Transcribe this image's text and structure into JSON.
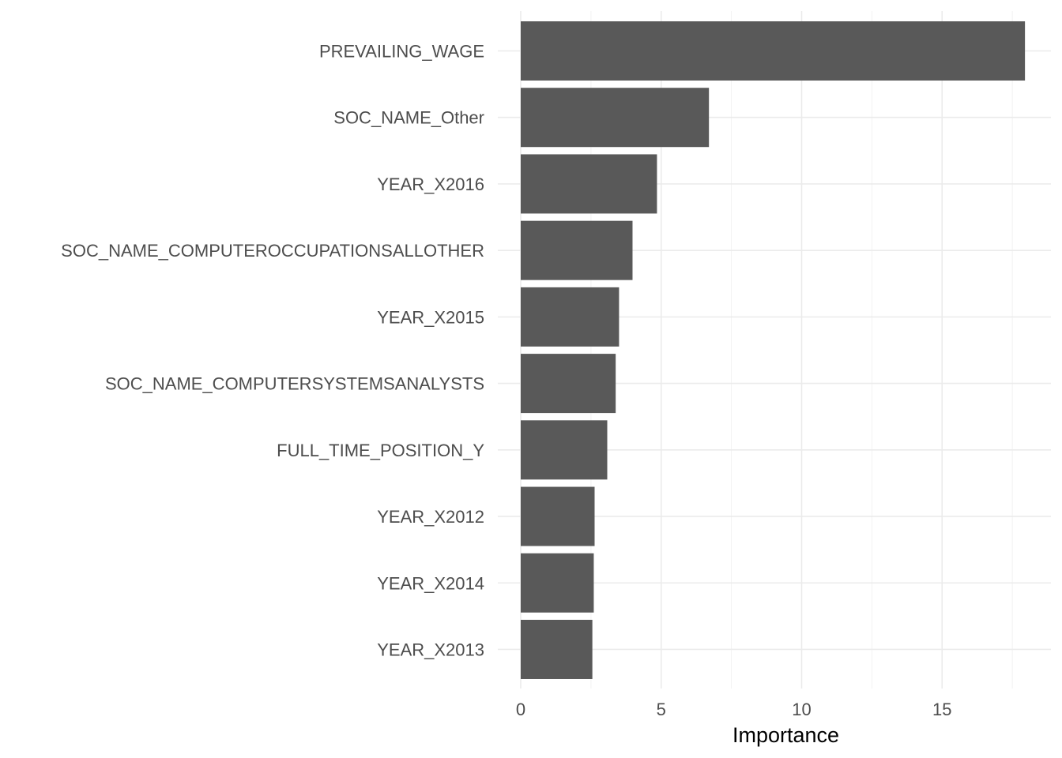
{
  "chart_data": {
    "type": "bar",
    "orientation": "horizontal",
    "categories": [
      "PREVAILING_WAGE",
      "SOC_NAME_Other",
      "YEAR_X2016",
      "SOC_NAME_COMPUTEROCCUPATIONSALLOTHER",
      "YEAR_X2015",
      "SOC_NAME_COMPUTERSYSTEMSANALYSTS",
      "FULL_TIME_POSITION_Y",
      "YEAR_X2012",
      "YEAR_X2014",
      "YEAR_X2013"
    ],
    "values": [
      17.95,
      6.7,
      4.85,
      3.98,
      3.5,
      3.38,
      3.08,
      2.63,
      2.6,
      2.55
    ],
    "xlabel": "Importance",
    "ylabel": "",
    "xlim": [
      0,
      18.9
    ],
    "xticks": [
      0,
      5,
      10,
      15
    ],
    "xtick_labels": [
      "0",
      "5",
      "10",
      "15"
    ],
    "grid": true,
    "bar_color": "#595959",
    "grid_color": "#ebebeb"
  }
}
